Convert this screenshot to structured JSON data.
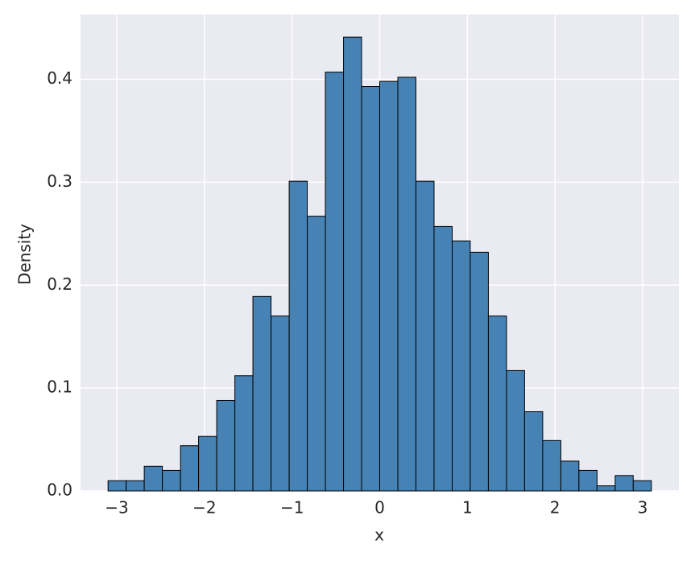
{
  "chart_data": {
    "type": "histogram",
    "x_label": "x",
    "y_label": "Density",
    "bins": [
      -3.1,
      -2.893,
      -2.687,
      -2.48,
      -2.273,
      -2.067,
      -1.86,
      -1.653,
      -1.447,
      -1.24,
      -1.033,
      -0.827,
      -0.62,
      -0.413,
      -0.207,
      0,
      0.207,
      0.413,
      0.62,
      0.827,
      1.033,
      1.24,
      1.447,
      1.653,
      1.86,
      2.067,
      2.273,
      2.48,
      2.687,
      2.893,
      3.1
    ],
    "values": [
      0.01,
      0.01,
      0.024,
      0.02,
      0.044,
      0.053,
      0.088,
      0.112,
      0.189,
      0.17,
      0.301,
      0.267,
      0.407,
      0.441,
      0.393,
      0.398,
      0.402,
      0.301,
      0.257,
      0.243,
      0.232,
      0.17,
      0.117,
      0.077,
      0.049,
      0.029,
      0.02,
      0.005,
      0.015,
      0.01
    ],
    "color": "#4682b4",
    "edge_color": "#000000",
    "xlim": [
      -3.414,
      3.414
    ],
    "ylim": [
      0,
      0.463
    ],
    "xticks": [
      {
        "value": -3,
        "label": "−3"
      },
      {
        "value": -2,
        "label": "−2"
      },
      {
        "value": -1,
        "label": "−1"
      },
      0,
      1,
      2,
      3
    ],
    "yticks": [
      {
        "value": 0,
        "label": "0.0"
      },
      0.1,
      0.2,
      0.3,
      0.4
    ],
    "grid": true
  }
}
